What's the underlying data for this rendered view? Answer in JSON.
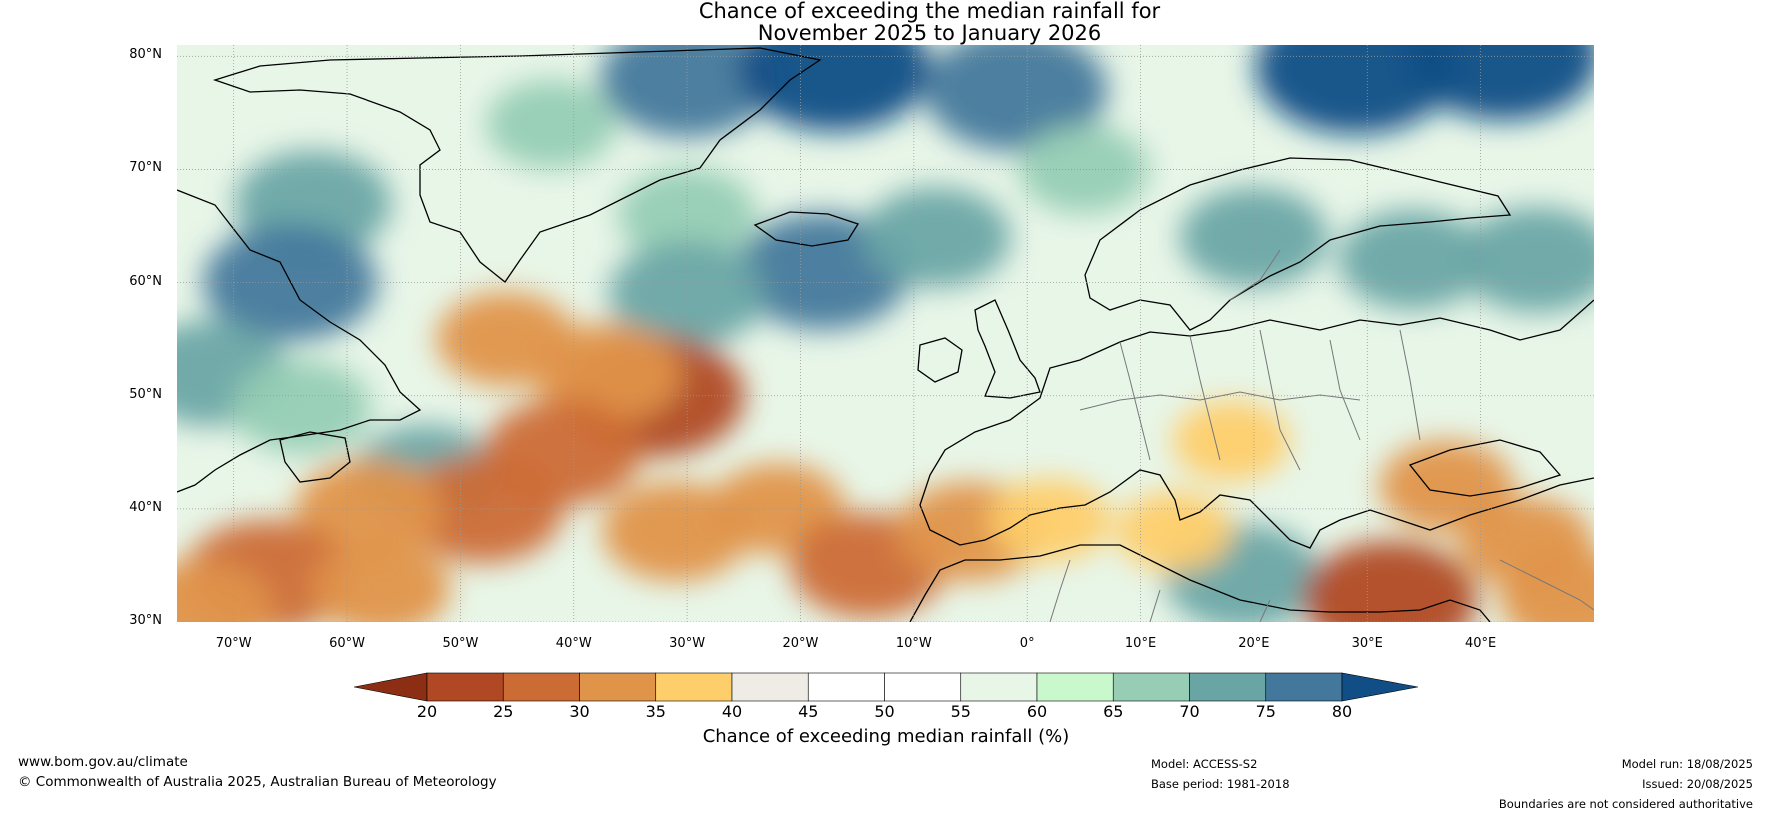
{
  "title": {
    "line1": "Chance of exceeding the median rainfall for",
    "line2": "November 2025 to January 2026"
  },
  "map": {
    "projection": "equirectangular",
    "extent": {
      "lon_min": -75,
      "lon_max": 50,
      "lat_min": 30,
      "lat_max": 81
    },
    "gridlines": true,
    "lat_ticks": [
      {
        "lat": 80,
        "label": "80°N"
      },
      {
        "lat": 70,
        "label": "70°N"
      },
      {
        "lat": 60,
        "label": "60°N"
      },
      {
        "lat": 50,
        "label": "50°N"
      },
      {
        "lat": 40,
        "label": "40°N"
      },
      {
        "lat": 30,
        "label": "30°N"
      }
    ],
    "lon_ticks": [
      {
        "lon": -70,
        "label": "70°W"
      },
      {
        "lon": -60,
        "label": "60°W"
      },
      {
        "lon": -50,
        "label": "50°W"
      },
      {
        "lon": -40,
        "label": "40°W"
      },
      {
        "lon": -30,
        "label": "30°W"
      },
      {
        "lon": -20,
        "label": "20°W"
      },
      {
        "lon": -10,
        "label": "10°W"
      },
      {
        "lon": 0,
        "label": "0°"
      },
      {
        "lon": 10,
        "label": "10°E"
      },
      {
        "lon": 20,
        "label": "20°E"
      },
      {
        "lon": 30,
        "label": "30°E"
      },
      {
        "lon": 40,
        "label": "40°E"
      }
    ],
    "dry_regions": [
      {
        "lon": -33,
        "lat": 50,
        "value": 22
      },
      {
        "lon": -37,
        "lat": 52,
        "value": 30
      },
      {
        "lon": -46,
        "lat": 55,
        "value": 32
      },
      {
        "lon": -41,
        "lat": 45,
        "value": 28
      },
      {
        "lon": -48,
        "lat": 40,
        "value": 27
      },
      {
        "lon": -58,
        "lat": 40,
        "value": 30
      },
      {
        "lon": -67,
        "lat": 34,
        "value": 25
      },
      {
        "lon": -73,
        "lat": 31,
        "value": 30
      },
      {
        "lon": -57,
        "lat": 33,
        "value": 32
      },
      {
        "lon": -31,
        "lat": 38,
        "value": 30
      },
      {
        "lon": -22,
        "lat": 40,
        "value": 33
      },
      {
        "lon": -14,
        "lat": 35,
        "value": 28
      },
      {
        "lon": -5,
        "lat": 38,
        "value": 30
      },
      {
        "lon": 2,
        "lat": 39,
        "value": 36
      },
      {
        "lon": 13,
        "lat": 38,
        "value": 37
      },
      {
        "lon": 32,
        "lat": 32,
        "value": 24
      },
      {
        "lon": 37,
        "lat": 42,
        "value": 33
      },
      {
        "lon": 44,
        "lat": 37,
        "value": 33
      },
      {
        "lon": 48,
        "lat": 32,
        "value": 31
      },
      {
        "lon": 18,
        "lat": 46,
        "value": 37
      }
    ],
    "wet_regions": [
      {
        "lon": -63,
        "lat": 67,
        "value": 72
      },
      {
        "lon": -65,
        "lat": 60,
        "value": 76
      },
      {
        "lon": -72,
        "lat": 52,
        "value": 72
      },
      {
        "lon": -64,
        "lat": 49,
        "value": 68
      },
      {
        "lon": -53,
        "lat": 43,
        "value": 70
      },
      {
        "lon": -42,
        "lat": 74,
        "value": 66
      },
      {
        "lon": -30,
        "lat": 78,
        "value": 76
      },
      {
        "lon": -17,
        "lat": 79,
        "value": 80
      },
      {
        "lon": -1,
        "lat": 77,
        "value": 78
      },
      {
        "lon": 29,
        "lat": 79,
        "value": 82
      },
      {
        "lon": 42,
        "lat": 80,
        "value": 80
      },
      {
        "lon": -30,
        "lat": 66,
        "value": 68
      },
      {
        "lon": -18,
        "lat": 61,
        "value": 76
      },
      {
        "lon": -30,
        "lat": 59,
        "value": 72
      },
      {
        "lon": -8,
        "lat": 64,
        "value": 70
      },
      {
        "lon": 5,
        "lat": 70,
        "value": 66
      },
      {
        "lon": 20,
        "lat": 64,
        "value": 70
      },
      {
        "lon": 34,
        "lat": 62,
        "value": 70
      },
      {
        "lon": 45,
        "lat": 62,
        "value": 72
      },
      {
        "lon": 19,
        "lat": 34,
        "value": 72
      }
    ]
  },
  "colorbar": {
    "ticks": [
      20,
      25,
      30,
      35,
      40,
      45,
      50,
      55,
      60,
      65,
      70,
      75,
      80
    ],
    "label": "Chance of exceeding median rainfall (%)",
    "colors": {
      "under": "#8c2e13",
      "bins": [
        "#b04824",
        "#cc6c35",
        "#e0944a",
        "#fece6a",
        "#eeece4",
        "#ffffff",
        "#ffffff",
        "#e8f6e8",
        "#c8f8cc",
        "#96cdb4",
        "#6aa5a5",
        "#43789c"
      ],
      "over": "#104e85"
    }
  },
  "footer": {
    "url": "www.bom.gov.au/climate",
    "copyright": "© Commonwealth of Australia 2025, Australian Bureau of Meteorology",
    "model": "Model: ACCESS-S2",
    "base_period": "Base period: 1981-2018",
    "model_run": "Model run: 18/08/2025",
    "issued": "Issued: 20/08/2025",
    "disclaimer": "Boundaries are not considered authoritative"
  }
}
